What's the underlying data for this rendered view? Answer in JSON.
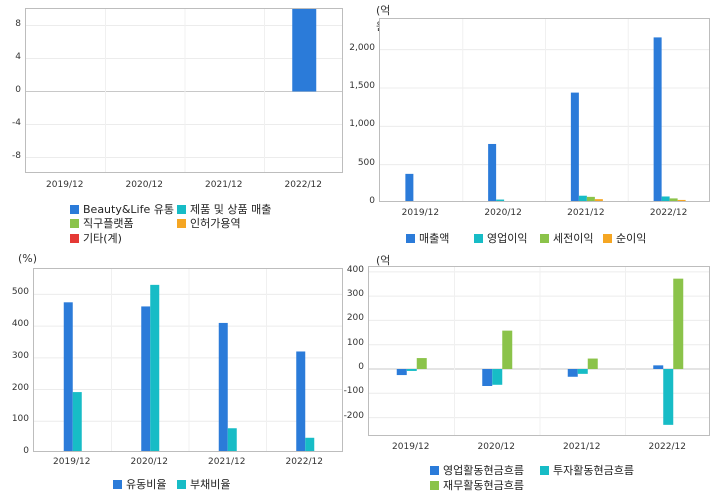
{
  "colors": {
    "blue": "#2b7bd9",
    "cyan": "#17bcc6",
    "green": "#8bc34a",
    "orange": "#f5a623",
    "red": "#e53935"
  },
  "chart_data": [
    {
      "type": "bar",
      "id": "segments",
      "unit": "",
      "categories": [
        "2019/12",
        "2020/12",
        "2021/12",
        "2022/12"
      ],
      "ylim": [
        -10,
        10
      ],
      "yticks": [
        "8",
        "4",
        "0",
        "-4",
        "-8"
      ],
      "grid": true,
      "legend_position": "bottom",
      "series": [
        {
          "name": "Beauty&Life 유통",
          "color": "#2b7bd9",
          "values": [
            null,
            null,
            null,
            10
          ]
        },
        {
          "name": "제품 및 상품 매출",
          "color": "#17bcc6",
          "values": [
            null,
            null,
            null,
            null
          ]
        },
        {
          "name": "직구플랫폼",
          "color": "#8bc34a",
          "values": [
            null,
            null,
            null,
            null
          ]
        },
        {
          "name": "인허가용역",
          "color": "#f5a623",
          "values": [
            null,
            null,
            null,
            null
          ]
        },
        {
          "name": "기타(계)",
          "color": "#e53935",
          "values": [
            null,
            null,
            null,
            null
          ]
        }
      ]
    },
    {
      "type": "bar",
      "id": "income",
      "unit": "(억원)",
      "categories": [
        "2019/12",
        "2020/12",
        "2021/12",
        "2022/12"
      ],
      "ylim": [
        0,
        2400
      ],
      "yticks": [
        "2,000",
        "1,500",
        "1,000",
        "500",
        "0"
      ],
      "grid": true,
      "legend_position": "bottom",
      "series": [
        {
          "name": "매출액",
          "color": "#2b7bd9",
          "values": [
            380,
            770,
            1440,
            2160
          ]
        },
        {
          "name": "영업이익",
          "color": "#17bcc6",
          "values": [
            15,
            45,
            95,
            85
          ]
        },
        {
          "name": "세전이익",
          "color": "#8bc34a",
          "values": [
            10,
            25,
            80,
            60
          ]
        },
        {
          "name": "순이익",
          "color": "#f5a623",
          "values": [
            8,
            15,
            50,
            40
          ]
        }
      ]
    },
    {
      "type": "bar",
      "id": "ratios",
      "unit": "(%)",
      "categories": [
        "2019/12",
        "2020/12",
        "2021/12",
        "2022/12"
      ],
      "ylim": [
        0,
        580
      ],
      "yticks": [
        "500",
        "400",
        "300",
        "200",
        "100",
        "0"
      ],
      "grid": true,
      "legend_position": "bottom",
      "series": [
        {
          "name": "유동비율",
          "color": "#2b7bd9",
          "values": [
            475,
            462,
            410,
            320
          ]
        },
        {
          "name": "부채비율",
          "color": "#17bcc6",
          "values": [
            192,
            530,
            78,
            48
          ]
        }
      ]
    },
    {
      "type": "bar",
      "id": "cashflow",
      "unit": "(억원)",
      "categories": [
        "2019/12",
        "2020/12",
        "2021/12",
        "2022/12"
      ],
      "ylim": [
        -280,
        420
      ],
      "yticks": [
        "400",
        "300",
        "200",
        "100",
        "0",
        "-100",
        "-200"
      ],
      "grid": true,
      "legend_position": "bottom",
      "series": [
        {
          "name": "영업활동현금흐름",
          "color": "#2b7bd9",
          "values": [
            -25,
            -70,
            -32,
            15
          ]
        },
        {
          "name": "투자활동현금흐름",
          "color": "#17bcc6",
          "values": [
            -8,
            -65,
            -20,
            -230
          ]
        },
        {
          "name": "재무활동현금흐름",
          "color": "#8bc34a",
          "values": [
            45,
            158,
            43,
            372
          ]
        }
      ]
    }
  ]
}
